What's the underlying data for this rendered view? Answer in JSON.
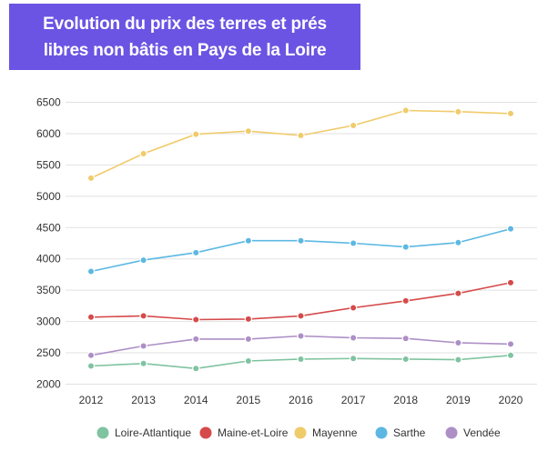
{
  "title_lines": [
    "Evolution du prix des terres et prés",
    "libres non bâtis en Pays de la Loire"
  ],
  "chart_data": {
    "type": "line",
    "title": "Evolution du prix des terres et prés libres non bâtis en Pays de la Loire",
    "xlabel": "",
    "ylabel": "",
    "categories": [
      "2012",
      "2013",
      "2014",
      "2015",
      "2016",
      "2017",
      "2018",
      "2019",
      "2020"
    ],
    "yticks": [
      2000,
      2500,
      3000,
      3500,
      4000,
      4500,
      5000,
      5500,
      6000,
      6500
    ],
    "ylim": [
      2000,
      6500
    ],
    "grid": true,
    "legend_position": "bottom",
    "series": [
      {
        "name": "Loire-Atlantique",
        "color": "#7fc3a0",
        "values": [
          2290,
          2330,
          2250,
          2370,
          2400,
          2410,
          2400,
          2390,
          2460
        ]
      },
      {
        "name": "Maine-et-Loire",
        "color": "#d64a4a",
        "values": [
          3070,
          3090,
          3030,
          3040,
          3090,
          3220,
          3330,
          3450,
          3620
        ]
      },
      {
        "name": "Mayenne",
        "color": "#f0cb6a",
        "values": [
          5290,
          5680,
          5990,
          6040,
          5970,
          6130,
          6370,
          6350,
          6320
        ]
      },
      {
        "name": "Sarthe",
        "color": "#5cb8e2",
        "values": [
          3800,
          3980,
          4100,
          4290,
          4290,
          4250,
          4190,
          4260,
          4480
        ]
      },
      {
        "name": "Vendée",
        "color": "#ad8fc6",
        "values": [
          2460,
          2610,
          2720,
          2720,
          2770,
          2740,
          2730,
          2660,
          2640
        ]
      }
    ]
  }
}
